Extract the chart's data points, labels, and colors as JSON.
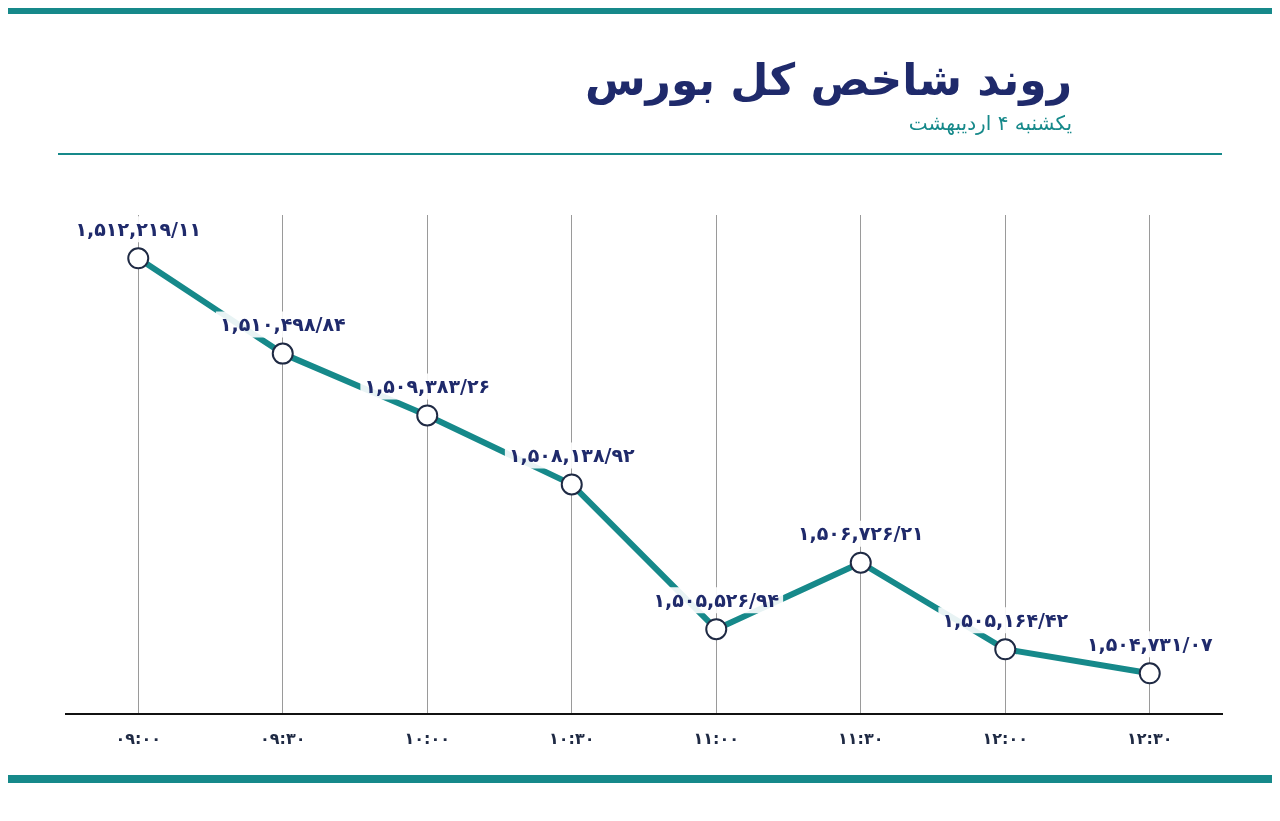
{
  "chart_data": {
    "type": "line",
    "title": "روند شاخص کل بورس",
    "subtitle": "یکشنبه ۴ اردیبهشت",
    "categories": [
      "۰۹:۰۰",
      "۰۹:۳۰",
      "۱۰:۰۰",
      "۱۰:۳۰",
      "۱۱:۰۰",
      "۱۱:۳۰",
      "۱۲:۰۰",
      "۱۲:۳۰"
    ],
    "series": [
      {
        "color": "#16898a",
        "values": [
          1512219.11,
          1510498.84,
          1509383.26,
          1508138.92,
          1505526.94,
          1506726.21,
          1505164.42,
          1504731.07
        ],
        "value_labels": [
          "۱,۵۱۲,۲۱۹/۱۱",
          "۱,۵۱۰,۴۹۸/۸۴",
          "۱,۵۰۹,۳۸۳/۲۶",
          "۱,۵۰۸,۱۳۸/۹۲",
          "۱,۵۰۵,۵۲۶/۹۴",
          "۱,۵۰۶,۷۲۶/۲۱",
          "۱,۵۰۵,۱۶۴/۴۲",
          "۱,۵۰۴,۷۳۱/۰۷"
        ]
      }
    ],
    "marker": "circle",
    "line_style": "solid",
    "grid": "x",
    "legend": false
  }
}
